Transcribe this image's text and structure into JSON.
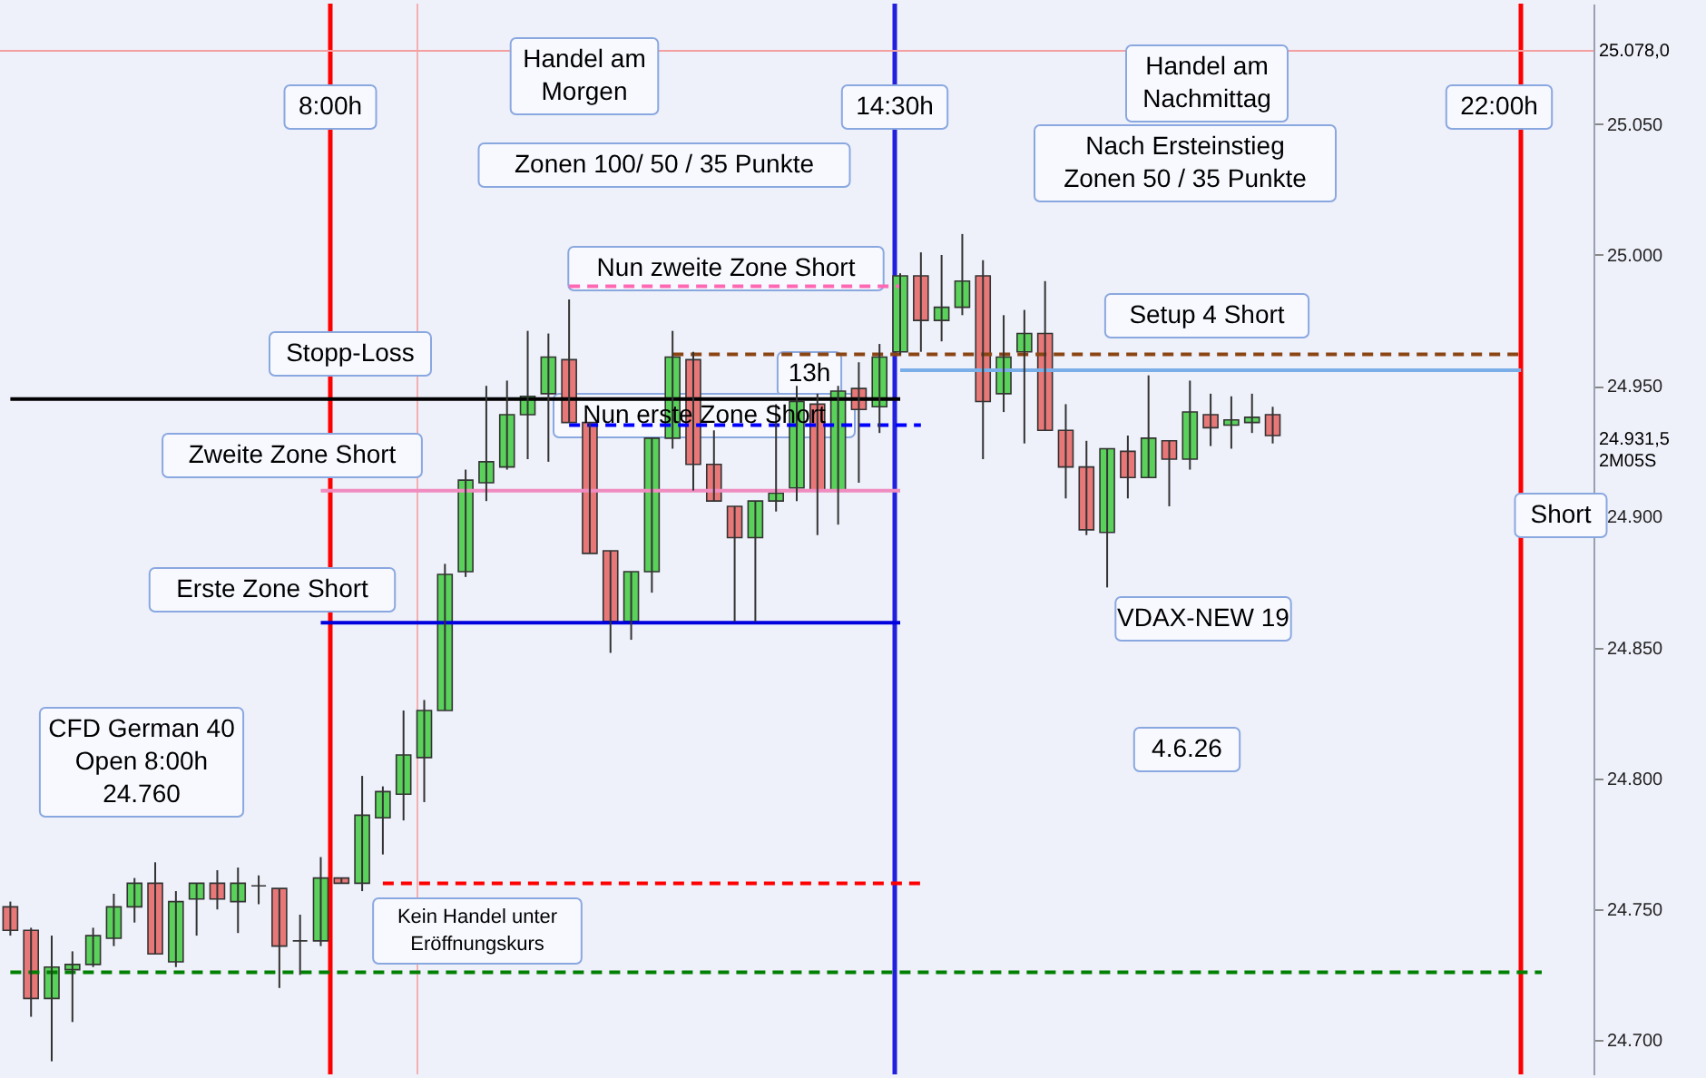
{
  "chart_data": {
    "type": "candlestick",
    "tick_labels": "y",
    "grid": false,
    "ylim": [
      24687,
      25096
    ],
    "yticks": [
      {
        "value": 24700,
        "label": "24.700"
      },
      {
        "value": 24750,
        "label": "24.750"
      },
      {
        "value": 24800,
        "label": "24.800"
      },
      {
        "value": 24850,
        "label": "24.850"
      },
      {
        "value": 24900,
        "label": "24.900"
      },
      {
        "value": 24950,
        "label": "24.950"
      },
      {
        "value": 25000,
        "label": "25.000"
      },
      {
        "value": 25050,
        "label": "25.050"
      }
    ],
    "categories": [
      null,
      null,
      null,
      null,
      null,
      null,
      null,
      null,
      null,
      null,
      null,
      null,
      null,
      null,
      null,
      null,
      null,
      null,
      null,
      null,
      null,
      null,
      null,
      null,
      null,
      null,
      null,
      null,
      null,
      null,
      null,
      null,
      null,
      null,
      null,
      null,
      null,
      null,
      null,
      null,
      null,
      null,
      null,
      null,
      null,
      null,
      null,
      null,
      null,
      null,
      null,
      null,
      null,
      null,
      null,
      null,
      null,
      null,
      null,
      null,
      null,
      null,
      null,
      null,
      null,
      null,
      null,
      null,
      null,
      null,
      null,
      null,
      null,
      null,
      null,
      null,
      null
    ],
    "ohlc": [
      [
        24751,
        24753,
        24740,
        24742
      ],
      [
        24742,
        24743,
        24709,
        24716
      ],
      [
        24716,
        24740,
        24692,
        24728
      ],
      [
        24727,
        24734,
        24707,
        24729
      ],
      [
        24729,
        24743,
        24728,
        24740
      ],
      [
        24739,
        24756,
        24736,
        24751
      ],
      [
        24751,
        24762,
        24745,
        24760
      ],
      [
        24760,
        24768,
        24733,
        24733
      ],
      [
        24730,
        24757,
        24728,
        24753
      ],
      [
        24754,
        24760,
        24740,
        24760
      ],
      [
        24760,
        24765,
        24750,
        24754
      ],
      [
        24753,
        24766,
        24741,
        24760
      ],
      [
        24759,
        24763,
        24752,
        24759
      ],
      [
        24758,
        24758,
        24720,
        24736
      ],
      [
        24738,
        24748,
        24725,
        24738
      ],
      [
        24738,
        24770,
        24736,
        24762
      ],
      [
        24762,
        24762,
        24760,
        24760
      ],
      [
        24760,
        24801,
        24757,
        24786
      ],
      [
        24785,
        24797,
        24771,
        24795
      ],
      [
        24794,
        24826,
        24784,
        24809
      ],
      [
        24808,
        24830,
        24791,
        24826
      ],
      [
        24826,
        24882,
        24826,
        24878
      ],
      [
        24879,
        24918,
        24877,
        24914
      ],
      [
        24913,
        24950,
        24906,
        24921
      ],
      [
        24919,
        24952,
        24918,
        24939
      ],
      [
        24939,
        24971,
        24922,
        24946
      ],
      [
        24947,
        24970,
        24921,
        24961
      ],
      [
        24960,
        24983,
        24936,
        24936
      ],
      [
        24936,
        24936,
        24886,
        24886
      ],
      [
        24887,
        24887,
        24848,
        24860
      ],
      [
        24860,
        24879,
        24853,
        24879
      ],
      [
        24879,
        24930,
        24871,
        24930
      ],
      [
        24930,
        24971,
        24926,
        24961
      ],
      [
        24960,
        24963,
        24910,
        24920
      ],
      [
        24920,
        24933,
        24906,
        24906
      ],
      [
        24904,
        24904,
        24860,
        24892
      ],
      [
        24892,
        24906,
        24860,
        24906
      ],
      [
        24906,
        24943,
        24902,
        24909
      ],
      [
        24911,
        24950,
        24906,
        24944
      ],
      [
        24943,
        24947,
        24893,
        24910
      ],
      [
        24910,
        24950,
        24897,
        24948
      ],
      [
        24949,
        24959,
        24913,
        24941
      ],
      [
        24942,
        24966,
        24932,
        24961
      ],
      [
        24963,
        24993,
        24962,
        24992
      ],
      [
        24992,
        25001,
        24963,
        24975
      ],
      [
        24975,
        25000,
        24967,
        24980
      ],
      [
        24980,
        25008,
        24977,
        24990
      ],
      [
        24992,
        24998,
        24922,
        24944
      ],
      [
        24947,
        24977,
        24940,
        24961
      ],
      [
        24963,
        24979,
        24928,
        24970
      ],
      [
        24970,
        24990,
        24933,
        24933
      ],
      [
        24933,
        24943,
        24907,
        24919
      ],
      [
        24919,
        24929,
        24893,
        24895
      ],
      [
        24894,
        24926,
        24873,
        24926
      ],
      [
        24925,
        24931,
        24907,
        24915
      ],
      [
        24915,
        24954,
        24915,
        24930
      ],
      [
        24929,
        24929,
        24904,
        24922
      ],
      [
        24922,
        24952,
        24918,
        24940
      ],
      [
        24939,
        24947,
        24927,
        24934
      ],
      [
        24935,
        24946,
        24926,
        24937
      ],
      [
        24936,
        24947,
        24932,
        24938
      ],
      [
        24939,
        24942,
        24928,
        24931
      ],
      null,
      null,
      null,
      null,
      null,
      null,
      null,
      null,
      null,
      null,
      null,
      null,
      null,
      null,
      null
    ],
    "colors": [
      "#e87878",
      "#e87878",
      "#5ad15a",
      "#5ad15a",
      "#5ad15a",
      "#5ad15a",
      "#5ad15a",
      "#e87878",
      "#5ad15a",
      "#5ad15a",
      "#e87878",
      "#5ad15a",
      "#333333",
      "#e87878",
      "#333333",
      "#5ad15a",
      "#e87878",
      "#5ad15a",
      "#5ad15a",
      "#5ad15a",
      "#5ad15a",
      "#5ad15a",
      "#5ad15a",
      "#5ad15a",
      "#5ad15a",
      "#5ad15a",
      "#5ad15a",
      "#e87878",
      "#e87878",
      "#e87878",
      "#5ad15a",
      "#5ad15a",
      "#5ad15a",
      "#e87878",
      "#e87878",
      "#e87878",
      "#5ad15a",
      "#5ad15a",
      "#5ad15a",
      "#e87878",
      "#5ad15a",
      "#e87878",
      "#5ad15a",
      "#5ad15a",
      "#e87878",
      "#5ad15a",
      "#5ad15a",
      "#e87878",
      "#5ad15a",
      "#5ad15a",
      "#e87878",
      "#e87878",
      "#e87878",
      "#5ad15a",
      "#e87878",
      "#5ad15a",
      "#e87878",
      "#5ad15a",
      "#e87878",
      "#5ad15a",
      "#5ad15a",
      "#e87878",
      null,
      null,
      null,
      null,
      null,
      null,
      null,
      null,
      null,
      null,
      null,
      null,
      null,
      null,
      null
    ],
    "series": [
      {
        "type": "line",
        "color": "#000000",
        "line_style": "solid",
        "values": [
          24945,
          24945,
          24945,
          24945,
          24945,
          24945,
          24945,
          24945,
          24945,
          24945,
          24945,
          24945,
          24945,
          24945,
          24945,
          24945,
          24945,
          24945,
          24945,
          24945,
          24945,
          24945,
          24945,
          24945,
          24945,
          24945,
          24945,
          24945,
          24945,
          24945,
          24945,
          24945,
          24945,
          24945,
          24945,
          24945,
          24945,
          24945,
          24945,
          24945,
          24945,
          24945,
          24945,
          24945,
          null,
          null,
          null,
          null,
          null,
          null,
          null,
          null,
          null,
          null,
          null,
          null,
          null,
          null,
          null,
          null,
          null,
          null,
          null,
          null,
          null,
          null,
          null,
          null,
          null,
          null,
          null,
          null,
          null,
          null,
          null,
          null,
          null
        ]
      },
      {
        "type": "line",
        "color": "#f08cc0",
        "line_style": "solid",
        "values": [
          null,
          null,
          null,
          null,
          null,
          null,
          null,
          null,
          null,
          null,
          null,
          null,
          null,
          null,
          null,
          24910,
          24910,
          24910,
          24910,
          24910,
          24910,
          24910,
          24910,
          24910,
          24910,
          24910,
          24910,
          24910,
          24910,
          24910,
          24910,
          24910,
          24910,
          24910,
          24910,
          24910,
          24910,
          24910,
          24910,
          24910,
          24910,
          24910,
          24910,
          24910,
          null,
          null,
          null,
          null,
          null,
          null,
          null,
          null,
          null,
          null,
          null,
          null,
          null,
          null,
          null,
          null,
          null,
          null,
          null,
          null,
          null,
          null,
          null,
          null,
          null,
          null,
          null,
          null,
          null,
          null,
          null,
          null,
          null
        ]
      },
      {
        "type": "line",
        "color": "#0000dd",
        "line_style": "solid",
        "values": [
          null,
          null,
          null,
          null,
          null,
          null,
          null,
          null,
          null,
          null,
          null,
          null,
          null,
          null,
          null,
          24859.5,
          24859.5,
          24859.5,
          24859.5,
          24859.5,
          24859.5,
          24859.5,
          24859.5,
          24859.5,
          24859.5,
          24859.5,
          24859.5,
          24859.5,
          24859.5,
          24859.5,
          24859.5,
          24859.5,
          24859.5,
          24859.5,
          24859.5,
          24859.5,
          24859.5,
          24859.5,
          24859.5,
          24859.5,
          24859.5,
          24859.5,
          24859.5,
          24859.5,
          null,
          null,
          null,
          null,
          null,
          null,
          null,
          null,
          null,
          null,
          null,
          null,
          null,
          null,
          null,
          null,
          null,
          null,
          null,
          null,
          null,
          null,
          null,
          null,
          null,
          null,
          null,
          null,
          null,
          null,
          null,
          null,
          null
        ]
      },
      {
        "type": "line",
        "color": "#ff0000",
        "line_style": "dashed",
        "values": [
          null,
          null,
          null,
          null,
          null,
          null,
          null,
          null,
          null,
          null,
          null,
          null,
          null,
          null,
          null,
          null,
          null,
          null,
          24760,
          24760,
          24760,
          24760,
          24760,
          24760,
          24760,
          24760,
          24760,
          24760,
          24760,
          24760,
          24760,
          24760,
          24760,
          24760,
          24760,
          24760,
          24760,
          24760,
          24760,
          24760,
          24760,
          24760,
          24760,
          24760,
          24760,
          null,
          null,
          null,
          null,
          null,
          null,
          null,
          null,
          null,
          null,
          null,
          null,
          null,
          null,
          null,
          null,
          null,
          null,
          null,
          null,
          null,
          null,
          null,
          null,
          null,
          null,
          null,
          null,
          null,
          null,
          null,
          null
        ]
      },
      {
        "type": "line",
        "color": "#008000",
        "line_style": "dashed",
        "values": [
          24726,
          24726,
          24726,
          24726,
          24726,
          24726,
          24726,
          24726,
          24726,
          24726,
          24726,
          24726,
          24726,
          24726,
          24726,
          24726,
          24726,
          24726,
          24726,
          24726,
          24726,
          24726,
          24726,
          24726,
          24726,
          24726,
          24726,
          24726,
          24726,
          24726,
          24726,
          24726,
          24726,
          24726,
          24726,
          24726,
          24726,
          24726,
          24726,
          24726,
          24726,
          24726,
          24726,
          24726,
          24726,
          24726,
          24726,
          24726,
          24726,
          24726,
          24726,
          24726,
          24726,
          24726,
          24726,
          24726,
          24726,
          24726,
          24726,
          24726,
          24726,
          24726,
          24726,
          24726,
          24726,
          24726,
          24726,
          24726,
          24726,
          24726,
          24726,
          24726,
          24726,
          24726,
          24726,
          null,
          null
        ]
      },
      {
        "type": "line",
        "color": "#8b4513",
        "line_style": "dashed",
        "values": [
          null,
          null,
          null,
          null,
          null,
          null,
          null,
          null,
          null,
          null,
          null,
          null,
          null,
          null,
          null,
          null,
          null,
          null,
          null,
          null,
          null,
          null,
          null,
          null,
          null,
          null,
          null,
          null,
          null,
          null,
          null,
          null,
          24962,
          24962,
          24962,
          24962,
          24962,
          24962,
          24962,
          24962,
          24962,
          24962,
          24962,
          24962,
          24962,
          24962,
          24962,
          24962,
          24962,
          24962,
          24962,
          24962,
          24962,
          24962,
          24962,
          24962,
          24962,
          24962,
          24962,
          24962,
          24962,
          24962,
          24962,
          24962,
          24962,
          24962,
          24962,
          24962,
          24962,
          24962,
          24962,
          24962,
          24962,
          24962,
          null,
          null,
          null
        ]
      },
      {
        "type": "line",
        "color": "#7aaee8",
        "line_style": "solid",
        "values": [
          null,
          null,
          null,
          null,
          null,
          null,
          null,
          null,
          null,
          null,
          null,
          null,
          null,
          null,
          null,
          null,
          null,
          null,
          null,
          null,
          null,
          null,
          null,
          null,
          null,
          null,
          null,
          null,
          null,
          null,
          null,
          null,
          null,
          null,
          null,
          null,
          null,
          null,
          null,
          null,
          null,
          null,
          null,
          24956,
          24956,
          24956,
          24956,
          24956,
          24956,
          24956,
          24956,
          24956,
          24956,
          24956,
          24956,
          24956,
          24956,
          24956,
          24956,
          24956,
          24956,
          24956,
          24956,
          24956,
          24956,
          24956,
          24956,
          24956,
          24956,
          24956,
          24956,
          24956,
          24956,
          24956,
          null,
          null,
          null
        ]
      },
      {
        "type": "line",
        "color": "#ff69b4",
        "line_style": "dashed",
        "values": [
          null,
          null,
          null,
          null,
          null,
          null,
          null,
          null,
          null,
          null,
          null,
          null,
          null,
          null,
          null,
          null,
          null,
          null,
          null,
          null,
          null,
          null,
          null,
          null,
          null,
          null,
          null,
          24988,
          24988,
          24988,
          24988,
          24988,
          24988,
          24988,
          24988,
          24988,
          24988,
          24988,
          24988,
          24988,
          24988,
          24988,
          24988,
          24988,
          null,
          null,
          null,
          null,
          null,
          null,
          null,
          null,
          null,
          null,
          null,
          null,
          null,
          null,
          null,
          null,
          null,
          null,
          null,
          null,
          null,
          null,
          null,
          null,
          null,
          null,
          null,
          null,
          null,
          null,
          null,
          null,
          null
        ]
      },
      {
        "type": "line",
        "color": "#0000ff",
        "line_style": "dashed",
        "values": [
          null,
          null,
          null,
          null,
          null,
          null,
          null,
          null,
          null,
          null,
          null,
          null,
          null,
          null,
          null,
          null,
          null,
          null,
          null,
          null,
          null,
          null,
          null,
          null,
          null,
          null,
          null,
          24935,
          24935,
          24935,
          24935,
          24935,
          24935,
          24935,
          24935,
          24935,
          24935,
          24935,
          24935,
          24935,
          24935,
          24935,
          24935,
          24935,
          24935,
          null,
          null,
          null,
          null,
          null,
          null,
          null,
          null,
          null,
          null,
          null,
          null,
          null,
          null,
          null,
          null,
          null,
          null,
          null,
          null,
          null,
          null,
          null,
          null,
          null,
          null,
          null,
          null,
          null,
          null,
          null,
          null
        ]
      }
    ],
    "ref_lines": [
      {
        "axis": "y",
        "value": 25078,
        "label": "25.078,0",
        "color": "#f4a0a0",
        "line_style": "solid"
      }
    ],
    "annotations": [
      "8:00h",
      "14:30h",
      "22:00h",
      "Handel am\nMorgen",
      "Zonen 100/ 50 / 35 Punkte",
      "Handel am\nNachmittag",
      "Nach Ersteinstieg\nZonen 50 / 35 Punkte",
      "Nun zweite Zone Short",
      "Setup 4 Short",
      "Stopp-Loss",
      "13h",
      "Nun erste Zone Short",
      "Zweite Zone Short",
      "Short",
      "Erste Zone Short",
      "VDAX-NEW 19",
      "CFD German 40\nOpen 8:00h\n24.760",
      "4.6.26",
      "Kein Handel unter\nEröffnungskurs",
      "24.931,5",
      "2M05S"
    ]
  }
}
